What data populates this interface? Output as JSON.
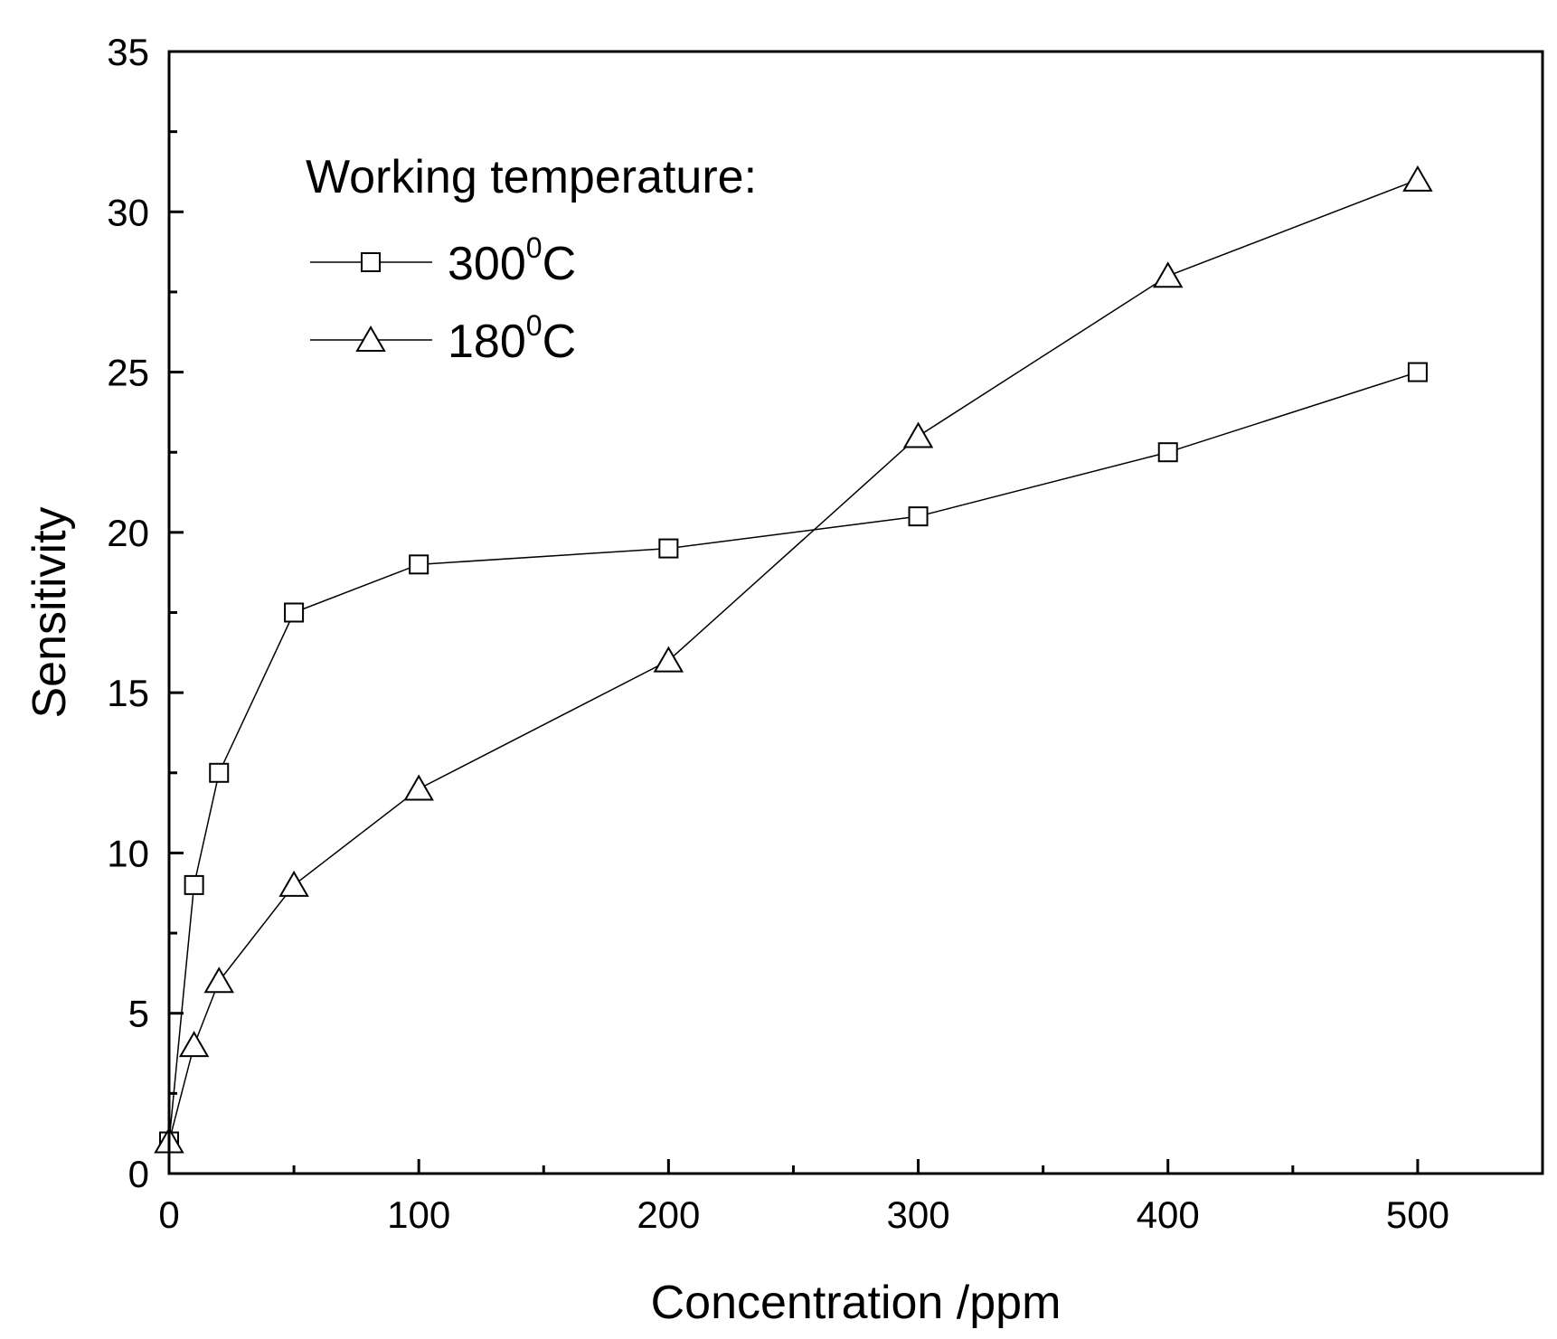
{
  "chart_data": {
    "type": "line",
    "title": "",
    "xlabel": "Concentration /ppm",
    "ylabel": "Sensitivity",
    "xlim": [
      0,
      550
    ],
    "ylim": [
      0,
      35
    ],
    "x_ticks": [
      0,
      100,
      200,
      300,
      400,
      500
    ],
    "x_ticks_minor": [
      50,
      150,
      250,
      350,
      450
    ],
    "y_ticks": [
      0,
      5,
      10,
      15,
      20,
      25,
      30,
      35
    ],
    "y_ticks_minor": [
      2.5,
      7.5,
      12.5,
      17.5,
      22.5,
      27.5,
      32.5
    ],
    "grid": false,
    "legend": {
      "title": "Working temperature:",
      "placement": "top-left",
      "entries": [
        {
          "base": "300",
          "sup": "0",
          "unit": "C",
          "marker": "square"
        },
        {
          "base": "180",
          "sup": "0",
          "unit": "C",
          "marker": "triangle"
        }
      ]
    },
    "series": [
      {
        "name": "300°C",
        "marker": "square",
        "x": [
          0,
          10,
          20,
          50,
          100,
          200,
          300,
          400,
          500
        ],
        "y": [
          1,
          9,
          12.5,
          17.5,
          19,
          19.5,
          20.5,
          22.5,
          25
        ]
      },
      {
        "name": "180°C",
        "marker": "triangle",
        "x": [
          0,
          10,
          20,
          50,
          100,
          200,
          300,
          400,
          500
        ],
        "y": [
          1,
          4,
          6,
          9,
          12,
          16,
          23,
          28,
          31
        ]
      }
    ],
    "colors": {
      "line": "#000000",
      "marker_fill": "#ffffff",
      "background": "#ffffff"
    }
  }
}
